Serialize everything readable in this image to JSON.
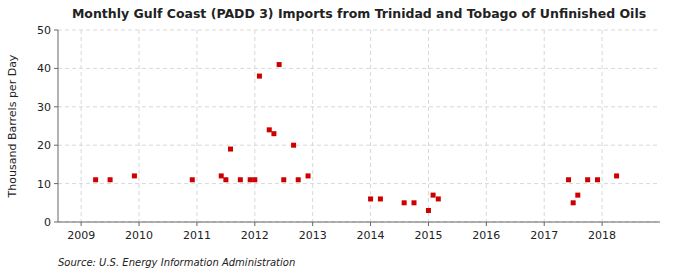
{
  "chart_data": {
    "type": "scatter",
    "title": "Monthly Gulf Coast (PADD 3) Imports from Trinidad and Tobago of Unfinished Oils",
    "y_label": "Thousand Barrels per Day",
    "source": "Source: U.S. Energy Information Administration",
    "x": [
      2009.25,
      2009.5,
      2009.92,
      2010.92,
      2011.42,
      2011.5,
      2011.58,
      2011.75,
      2011.92,
      2012.0,
      2012.08,
      2012.25,
      2012.33,
      2012.42,
      2012.5,
      2012.67,
      2012.75,
      2012.92,
      2014.0,
      2014.17,
      2014.58,
      2014.75,
      2015.0,
      2015.08,
      2015.17,
      2017.42,
      2017.5,
      2017.58,
      2017.75,
      2017.92,
      2018.25
    ],
    "values": [
      11,
      11,
      12,
      11,
      12,
      11,
      19,
      11,
      11,
      11,
      38,
      24,
      23,
      41,
      11,
      20,
      11,
      12,
      6,
      6,
      5,
      5,
      3,
      7,
      6,
      11,
      5,
      7,
      11,
      11,
      12
    ],
    "color": "#cc0000",
    "marker": "square",
    "xlim": [
      2008.6,
      2019.0
    ],
    "xticks": [
      2009,
      2010,
      2011,
      2012,
      2013,
      2014,
      2015,
      2016,
      2017,
      2018
    ],
    "ylim": [
      0,
      50
    ],
    "yticks": [
      0,
      10,
      20,
      30,
      40,
      50
    ],
    "grid": true
  }
}
